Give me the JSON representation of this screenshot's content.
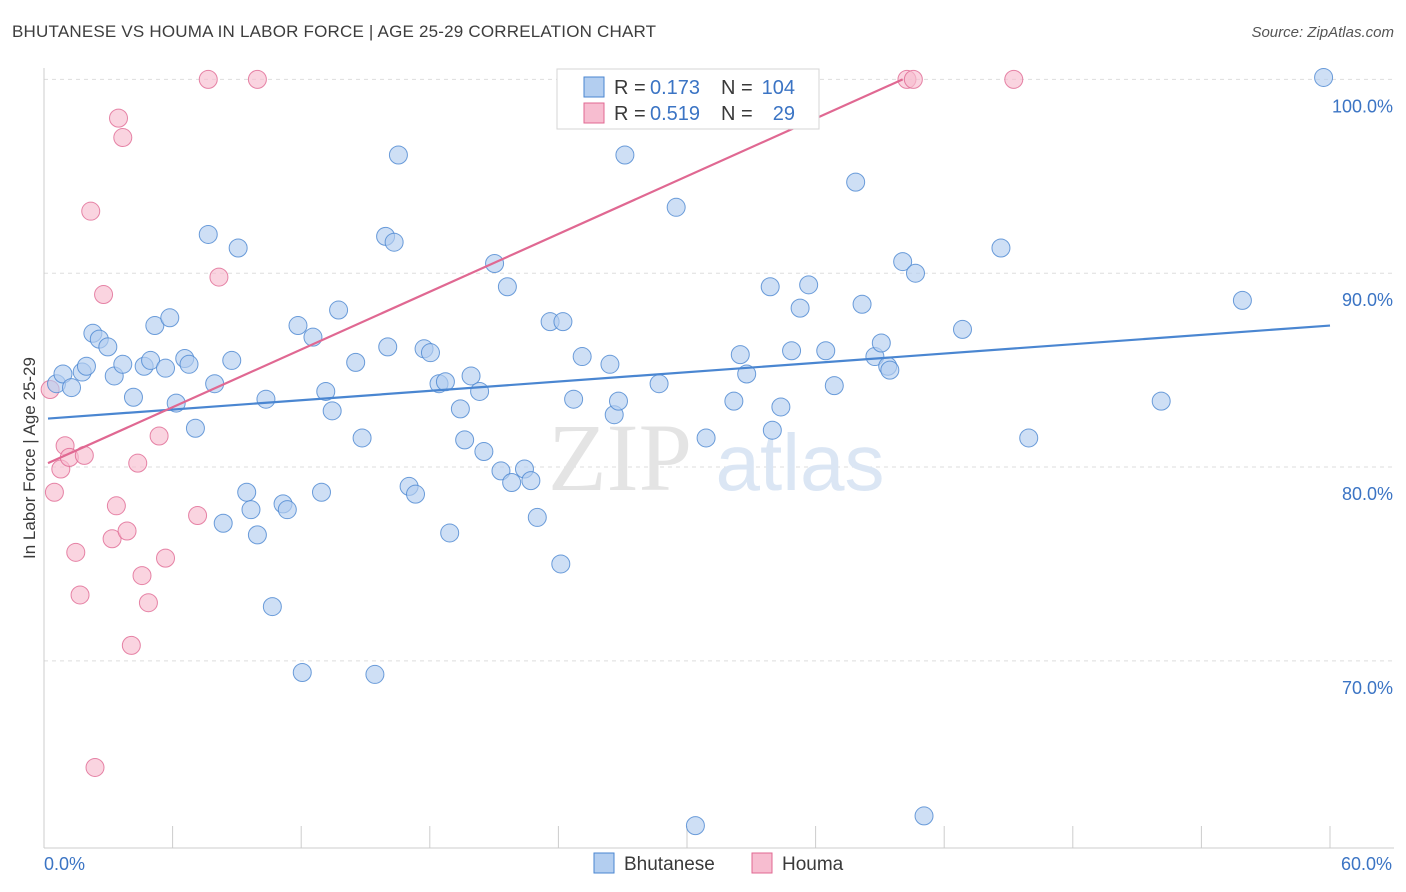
{
  "title": "BHUTANESE VS HOUMA IN LABOR FORCE | AGE 25-29 CORRELATION CHART",
  "source": "Source: ZipAtlas.com",
  "watermark_zip": "ZIP",
  "watermark_atlas": "atlas",
  "colors": {
    "blue": "#4a86d1",
    "blue_fill": "#b3cef0",
    "pink": "#e06892",
    "pink_fill": "#f7bdd0",
    "tick": "#3b74c4"
  },
  "legend": {
    "r_label": "R =",
    "n_label": "N =",
    "rows": [
      {
        "r": "0.173",
        "n": "104"
      },
      {
        "r": "0.519",
        "n": "29"
      }
    ]
  },
  "chart_data": {
    "type": "scatter",
    "title": "BHUTANESE VS HOUMA IN LABOR FORCE | AGE 25-29 CORRELATION CHART",
    "xlabel": "",
    "ylabel": "In Labor Force | Age 25-29",
    "x_tick_labels": [
      "0.0%",
      "60.0%"
    ],
    "y_tick_labels": [
      "100.0%",
      "90.0%",
      "80.0%",
      "70.0%"
    ],
    "y_ticks": [
      100,
      90,
      80,
      70
    ],
    "xlim": [
      0,
      60
    ],
    "ylim": [
      60.5,
      101
    ],
    "grid": true,
    "legend_position": "top-center",
    "series": [
      {
        "name": "Bhutanese",
        "trend": {
          "x": [
            0,
            60
          ],
          "y": [
            82.5,
            87.3
          ]
        },
        "points": [
          [
            0.4,
            84.3
          ],
          [
            0.7,
            84.8
          ],
          [
            1.1,
            84.1
          ],
          [
            1.6,
            84.9
          ],
          [
            1.8,
            85.2
          ],
          [
            2.1,
            86.9
          ],
          [
            2.4,
            86.6
          ],
          [
            2.8,
            86.2
          ],
          [
            3.1,
            84.7
          ],
          [
            3.5,
            85.3
          ],
          [
            4.0,
            83.6
          ],
          [
            4.5,
            85.2
          ],
          [
            4.8,
            85.5
          ],
          [
            5.0,
            87.3
          ],
          [
            5.5,
            85.1
          ],
          [
            5.7,
            87.7
          ],
          [
            6.0,
            83.3
          ],
          [
            6.4,
            85.6
          ],
          [
            6.6,
            85.3
          ],
          [
            6.9,
            82.0
          ],
          [
            7.5,
            92.0
          ],
          [
            7.8,
            84.3
          ],
          [
            8.2,
            77.1
          ],
          [
            8.6,
            85.5
          ],
          [
            8.9,
            91.3
          ],
          [
            9.3,
            78.7
          ],
          [
            9.5,
            77.8
          ],
          [
            9.8,
            76.5
          ],
          [
            10.2,
            83.5
          ],
          [
            10.5,
            72.8
          ],
          [
            11.0,
            78.1
          ],
          [
            11.2,
            77.8
          ],
          [
            11.7,
            87.3
          ],
          [
            11.9,
            69.4
          ],
          [
            12.4,
            86.7
          ],
          [
            12.8,
            78.7
          ],
          [
            13.0,
            83.9
          ],
          [
            13.3,
            82.9
          ],
          [
            13.6,
            88.1
          ],
          [
            14.4,
            85.4
          ],
          [
            14.7,
            81.5
          ],
          [
            15.3,
            69.3
          ],
          [
            15.8,
            91.9
          ],
          [
            15.9,
            86.2
          ],
          [
            16.2,
            91.6
          ],
          [
            16.4,
            96.1
          ],
          [
            16.9,
            79.0
          ],
          [
            17.2,
            78.6
          ],
          [
            17.6,
            86.1
          ],
          [
            17.9,
            85.9
          ],
          [
            18.3,
            84.3
          ],
          [
            18.6,
            84.4
          ],
          [
            18.8,
            76.6
          ],
          [
            19.3,
            83.0
          ],
          [
            19.5,
            81.4
          ],
          [
            19.8,
            84.7
          ],
          [
            20.2,
            83.9
          ],
          [
            20.4,
            80.8
          ],
          [
            20.9,
            90.5
          ],
          [
            21.2,
            79.8
          ],
          [
            21.5,
            89.3
          ],
          [
            21.7,
            79.2
          ],
          [
            22.3,
            79.9
          ],
          [
            22.6,
            79.3
          ],
          [
            22.9,
            77.4
          ],
          [
            23.5,
            87.5
          ],
          [
            24.0,
            75.0
          ],
          [
            24.1,
            87.5
          ],
          [
            24.6,
            83.5
          ],
          [
            25.0,
            85.7
          ],
          [
            26.3,
            85.3
          ],
          [
            26.5,
            82.7
          ],
          [
            26.7,
            83.4
          ],
          [
            27.0,
            96.1
          ],
          [
            28.6,
            84.3
          ],
          [
            29.4,
            93.4
          ],
          [
            30.3,
            61.5
          ],
          [
            30.8,
            81.5
          ],
          [
            32.1,
            83.4
          ],
          [
            32.4,
            85.8
          ],
          [
            32.7,
            84.8
          ],
          [
            33.8,
            89.3
          ],
          [
            33.9,
            81.9
          ],
          [
            34.3,
            83.1
          ],
          [
            34.8,
            86.0
          ],
          [
            35.2,
            88.2
          ],
          [
            35.6,
            89.4
          ],
          [
            36.4,
            86.0
          ],
          [
            36.8,
            84.2
          ],
          [
            37.8,
            94.7
          ],
          [
            38.1,
            88.4
          ],
          [
            38.7,
            85.7
          ],
          [
            39.0,
            86.4
          ],
          [
            39.3,
            85.2
          ],
          [
            39.4,
            85.0
          ],
          [
            40.0,
            90.6
          ],
          [
            40.6,
            90.0
          ],
          [
            41.0,
            62.0
          ],
          [
            42.8,
            87.1
          ],
          [
            44.6,
            91.3
          ],
          [
            45.9,
            81.5
          ],
          [
            52.1,
            83.4
          ],
          [
            55.9,
            88.6
          ],
          [
            59.7,
            100.1
          ]
        ]
      },
      {
        "name": "Houma",
        "trend": {
          "x": [
            0,
            40
          ],
          "y": [
            80.2,
            100.0
          ]
        },
        "points": [
          [
            0.1,
            84.0
          ],
          [
            0.3,
            78.7
          ],
          [
            0.6,
            79.9
          ],
          [
            0.8,
            81.1
          ],
          [
            1.0,
            80.5
          ],
          [
            1.3,
            75.6
          ],
          [
            1.5,
            73.4
          ],
          [
            1.7,
            80.6
          ],
          [
            2.0,
            93.2
          ],
          [
            2.2,
            64.5
          ],
          [
            2.6,
            88.9
          ],
          [
            3.0,
            76.3
          ],
          [
            3.2,
            78.0
          ],
          [
            3.3,
            98.0
          ],
          [
            3.5,
            97.0
          ],
          [
            3.7,
            76.7
          ],
          [
            3.9,
            70.8
          ],
          [
            4.2,
            80.2
          ],
          [
            4.4,
            74.4
          ],
          [
            4.7,
            73.0
          ],
          [
            5.2,
            81.6
          ],
          [
            5.5,
            75.3
          ],
          [
            7.0,
            77.5
          ],
          [
            7.5,
            100.0
          ],
          [
            8.0,
            89.8
          ],
          [
            9.8,
            100.0
          ],
          [
            40.2,
            100.0
          ],
          [
            40.5,
            100.0
          ],
          [
            45.2,
            100.0
          ]
        ]
      }
    ]
  },
  "bottom_legend": [
    "Bhutanese",
    "Houma"
  ]
}
